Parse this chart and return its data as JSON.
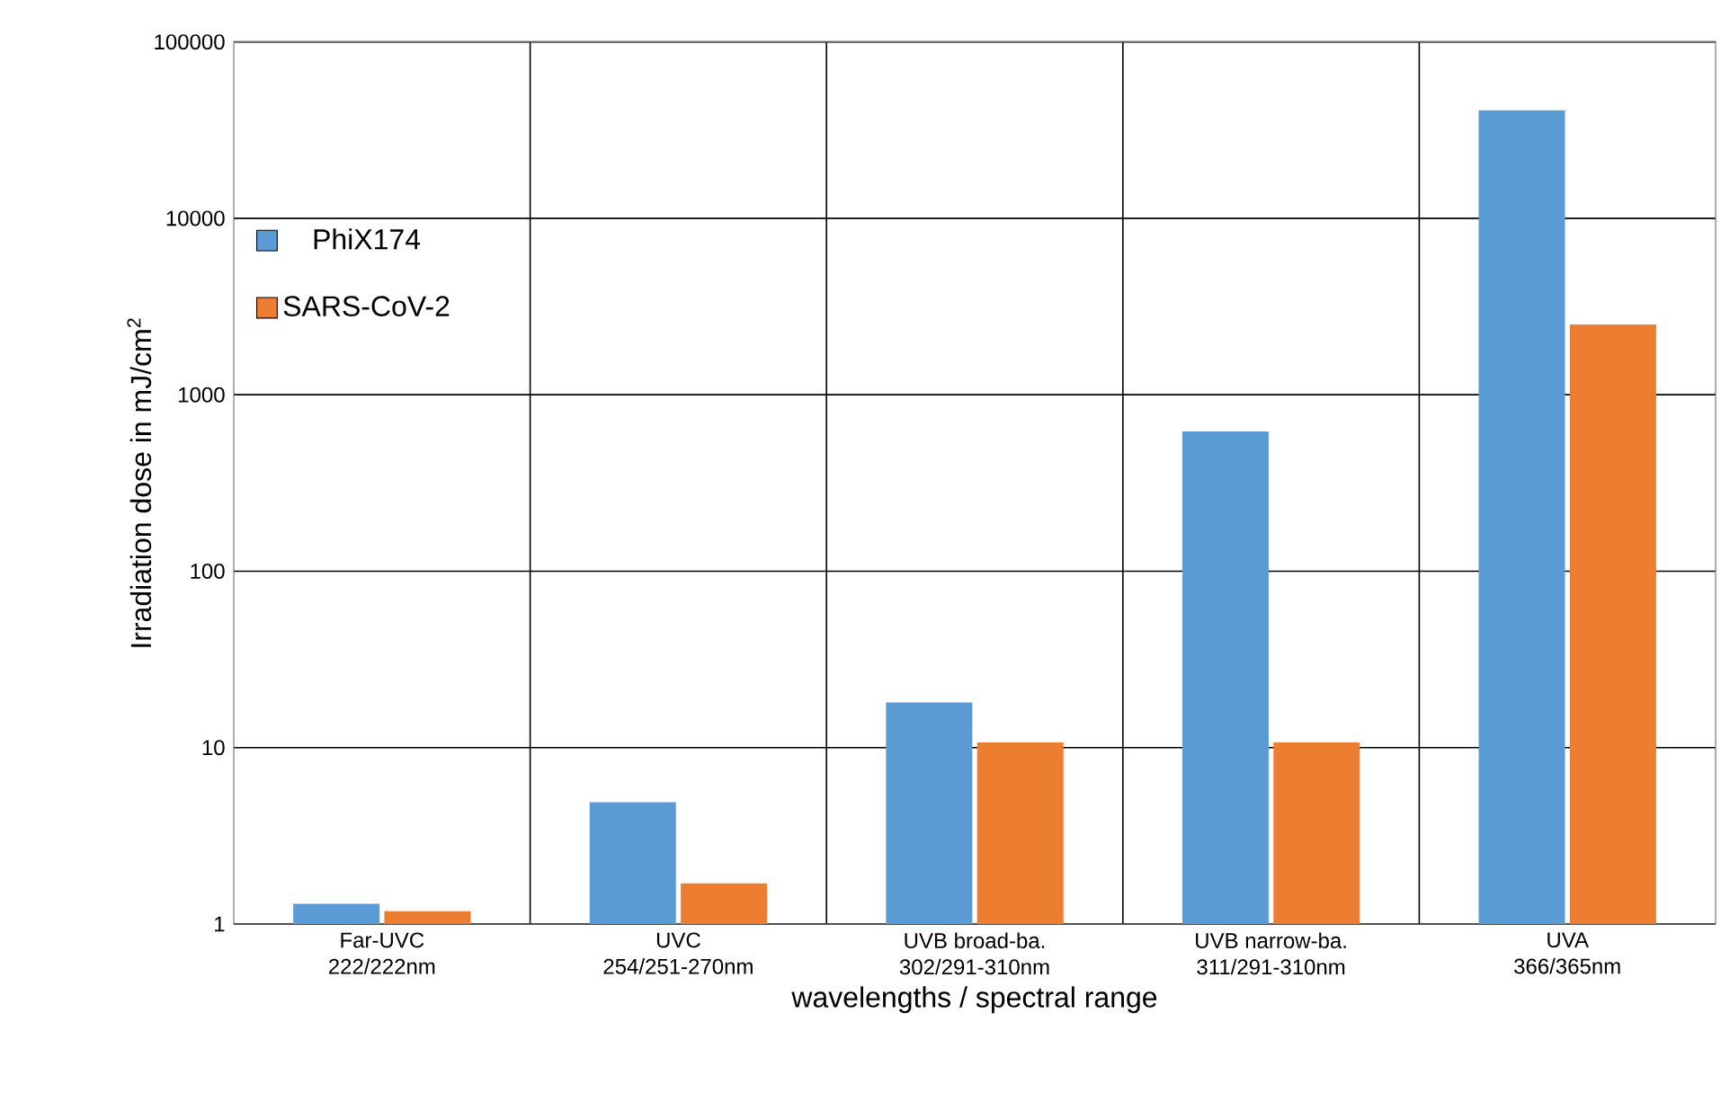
{
  "chart_data": {
    "type": "bar",
    "xlabel": "wavelengths / spectral range",
    "ylabel": "Irradiation dose in mJ/cm$^{2}$",
    "categories": [
      "Far-UVC\n222/222nm",
      "UVC\n254/251-270nm",
      "UVB broad-ba.\n302/291-310nm",
      "UVB narrow-ba.\n311/291-310nm",
      "UVA\n366/365nm"
    ],
    "series": [
      {
        "name": "PhiX174",
        "color": "#5b9bd5",
        "values": [
          1.3,
          4.9,
          18,
          620,
          41000
        ]
      },
      {
        "name": "SARS-CoV-2",
        "color": "#ed7d31",
        "values": [
          1.18,
          1.7,
          10.7,
          10.7,
          2500
        ]
      }
    ],
    "log": "y",
    "ylim": [
      1,
      100000
    ],
    "yticks": [
      1,
      10,
      100,
      1000,
      10000,
      100000
    ],
    "grid": true,
    "legend": "top left"
  }
}
